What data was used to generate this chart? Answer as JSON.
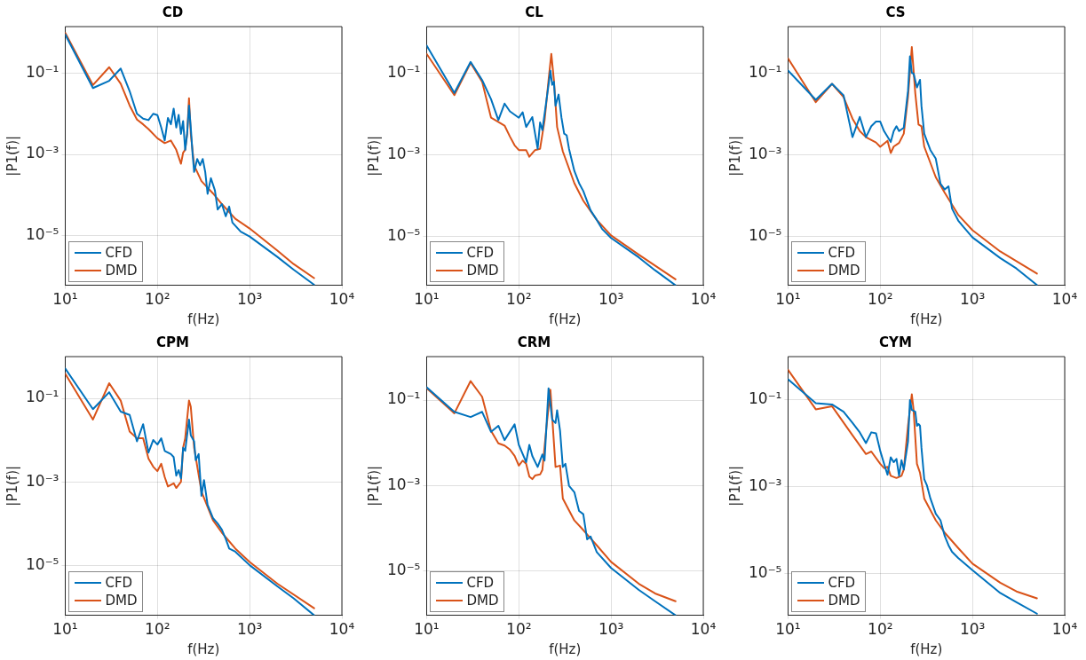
{
  "chart_data": [
    {
      "type": "line",
      "title": "CD",
      "xlabel": "f(Hz)",
      "ylabel": "|P1(f)|",
      "log": "xy",
      "grid": true,
      "legend": "bottom left",
      "line_style": "solid",
      "xlim": [
        10,
        10000
      ],
      "xticks": [
        {
          "value": 10,
          "label": "10¹"
        },
        {
          "value": 100,
          "label": "10²"
        },
        {
          "value": 1000,
          "label": "10³"
        },
        {
          "value": 10000,
          "label": "10⁴"
        }
      ],
      "ylim": [
        6e-07,
        1.4
      ],
      "yticks": [
        {
          "value": 1e-05,
          "label": "10⁻⁵"
        },
        {
          "value": 0.001,
          "label": "10⁻³"
        },
        {
          "value": 0.1,
          "label": "10⁻¹"
        }
      ],
      "series": [
        {
          "name": "CFD",
          "color": "#0072bd",
          "x": [
            10,
            20,
            30,
            40,
            50,
            60,
            70,
            80,
            90,
            100,
            110,
            120,
            130,
            140,
            150,
            160,
            170,
            180,
            190,
            200,
            210,
            220,
            230,
            240,
            250,
            270,
            290,
            310,
            330,
            350,
            380,
            420,
            450,
            500,
            550,
            600,
            650,
            800,
            1000,
            2000,
            3000,
            5000
          ],
          "values": [
            0.9,
            0.043,
            0.065,
            0.13,
            0.036,
            0.01,
            0.0076,
            0.007,
            0.01,
            0.0093,
            0.0046,
            0.0022,
            0.0079,
            0.0055,
            0.0134,
            0.0046,
            0.0094,
            0.0032,
            0.0066,
            0.0013,
            0.0032,
            0.016,
            0.0046,
            0.0011,
            0.00037,
            0.00077,
            0.00054,
            0.00077,
            0.00037,
            0.000107,
            0.00026,
            0.00013,
            4.4e-05,
            6e-05,
            3e-05,
            5.2e-05,
            2.1e-05,
            1.26e-05,
            9.5e-06,
            3e-06,
            1.45e-06,
            6.2e-07
          ]
        },
        {
          "name": "DMD",
          "color": "#d95319",
          "x": [
            10,
            20,
            30,
            40,
            50,
            60,
            70,
            80,
            100,
            120,
            140,
            160,
            180,
            190,
            200,
            210,
            220,
            230,
            250,
            300,
            400,
            500,
            700,
            1000,
            2000,
            3000,
            5000
          ],
          "values": [
            0.99,
            0.051,
            0.14,
            0.055,
            0.016,
            0.0072,
            0.0055,
            0.0042,
            0.0025,
            0.0019,
            0.0022,
            0.0013,
            0.00059,
            0.0011,
            0.0013,
            0.0032,
            0.024,
            0.0032,
            0.00054,
            0.00022,
            0.00011,
            6e-05,
            2.6e-05,
            1.5e-05,
            4.3e-06,
            2e-06,
            9e-07
          ]
        }
      ]
    },
    {
      "type": "line",
      "title": "CL",
      "xlabel": "f(Hz)",
      "ylabel": "|P1(f)|",
      "log": "xy",
      "grid": true,
      "legend": "bottom left",
      "line_style": "solid",
      "xlim": [
        10,
        10000
      ],
      "xticks": [
        {
          "value": 10,
          "label": "10¹"
        },
        {
          "value": 100,
          "label": "10²"
        },
        {
          "value": 1000,
          "label": "10³"
        },
        {
          "value": 10000,
          "label": "10⁴"
        }
      ],
      "ylim": [
        6.2e-07,
        1.4
      ],
      "yticks": [
        {
          "value": 1e-05,
          "label": "10⁻⁵"
        },
        {
          "value": 0.001,
          "label": "10⁻³"
        },
        {
          "value": 0.1,
          "label": "10⁻¹"
        }
      ],
      "series": [
        {
          "name": "CFD",
          "color": "#0072bd",
          "x": [
            10,
            20,
            30,
            40,
            50,
            60,
            70,
            80,
            100,
            110,
            120,
            140,
            150,
            160,
            170,
            180,
            200,
            220,
            230,
            240,
            250,
            270,
            290,
            310,
            330,
            350,
            400,
            450,
            500,
            550,
            600,
            700,
            800,
            1000,
            2000,
            3000,
            5000
          ],
          "values": [
            0.48,
            0.033,
            0.19,
            0.068,
            0.023,
            0.0071,
            0.018,
            0.0116,
            0.0081,
            0.011,
            0.0048,
            0.0084,
            0.0033,
            0.0014,
            0.0062,
            0.004,
            0.023,
            0.115,
            0.052,
            0.062,
            0.016,
            0.03,
            0.0081,
            0.0033,
            0.003,
            0.0014,
            0.0004,
            0.0002,
            0.000128,
            7.2e-05,
            4.3e-05,
            2.5e-05,
            1.5e-05,
            9e-06,
            3e-06,
            1.45e-06,
            6.2e-07
          ]
        },
        {
          "name": "DMD",
          "color": "#d95319",
          "x": [
            10,
            20,
            30,
            40,
            50,
            70,
            80,
            90,
            100,
            120,
            130,
            150,
            170,
            190,
            210,
            225,
            240,
            260,
            300,
            400,
            500,
            700,
            1000,
            2000,
            5000
          ],
          "values": [
            0.3,
            0.029,
            0.18,
            0.062,
            0.0081,
            0.0052,
            0.0028,
            0.0017,
            0.0013,
            0.0013,
            0.00089,
            0.0013,
            0.0014,
            0.0068,
            0.068,
            0.3,
            0.068,
            0.0048,
            0.0012,
            0.0002,
            7.4e-05,
            2.5e-05,
            1.04e-05,
            3.5e-06,
            8.7e-07
          ]
        }
      ]
    },
    {
      "type": "line",
      "title": "CS",
      "xlabel": "f(Hz)",
      "ylabel": "|P1(f)|",
      "log": "xy",
      "grid": true,
      "legend": "bottom left",
      "line_style": "solid",
      "xlim": [
        10,
        10000
      ],
      "xticks": [
        {
          "value": 10,
          "label": "10¹"
        },
        {
          "value": 100,
          "label": "10²"
        },
        {
          "value": 1000,
          "label": "10³"
        },
        {
          "value": 10000,
          "label": "10⁴"
        }
      ],
      "ylim": [
        6.2e-07,
        1.4
      ],
      "yticks": [
        {
          "value": 1e-05,
          "label": "10⁻⁵"
        },
        {
          "value": 0.001,
          "label": "10⁻³"
        },
        {
          "value": 0.1,
          "label": "10⁻¹"
        }
      ],
      "series": [
        {
          "name": "CFD",
          "color": "#0072bd",
          "x": [
            10,
            20,
            30,
            40,
            50,
            60,
            70,
            80,
            90,
            100,
            110,
            130,
            140,
            150,
            160,
            180,
            200,
            210,
            220,
            230,
            250,
            270,
            280,
            300,
            320,
            350,
            400,
            450,
            500,
            550,
            600,
            700,
            800,
            1000,
            2000,
            3000,
            5000
          ],
          "values": [
            0.117,
            0.0223,
            0.055,
            0.0288,
            0.0027,
            0.0085,
            0.0027,
            0.005,
            0.0065,
            0.0065,
            0.0038,
            0.00205,
            0.0038,
            0.005,
            0.0038,
            0.0046,
            0.037,
            0.26,
            0.102,
            0.098,
            0.045,
            0.069,
            0.0158,
            0.0033,
            0.0022,
            0.0013,
            0.0008,
            0.000195,
            0.00014,
            0.000167,
            4.74e-05,
            2.42e-05,
            1.67e-05,
            9.3e-06,
            2.9e-06,
            1.6e-06,
            6.3e-07
          ]
        },
        {
          "name": "DMD",
          "color": "#d95319",
          "x": [
            10,
            20,
            30,
            40,
            50,
            60,
            70,
            90,
            100,
            120,
            130,
            140,
            160,
            180,
            200,
            220,
            240,
            260,
            280,
            300,
            400,
            500,
            700,
            1000,
            2000,
            5000
          ],
          "values": [
            0.233,
            0.0195,
            0.055,
            0.026,
            0.0077,
            0.0038,
            0.0027,
            0.002,
            0.00156,
            0.0022,
            0.0011,
            0.00158,
            0.00195,
            0.0033,
            0.026,
            0.44,
            0.032,
            0.0055,
            0.005,
            0.00158,
            0.00028,
            0.000116,
            3.35e-05,
            1.4e-05,
            4.2e-06,
            1.2e-06
          ]
        }
      ]
    },
    {
      "type": "line",
      "title": "CPM",
      "xlabel": "f(Hz)",
      "ylabel": "|P1(f)|",
      "log": "xy",
      "grid": true,
      "legend": "bottom left",
      "line_style": "solid",
      "xlim": [
        10,
        10000
      ],
      "xticks": [
        {
          "value": 10,
          "label": "10¹"
        },
        {
          "value": 100,
          "label": "10²"
        },
        {
          "value": 1000,
          "label": "10³"
        },
        {
          "value": 10000,
          "label": "10⁴"
        }
      ],
      "ylim": [
        6.3e-07,
        1
      ],
      "yticks": [
        {
          "value": 1e-05,
          "label": "10⁻⁵"
        },
        {
          "value": 0.001,
          "label": "10⁻³"
        },
        {
          "value": 0.1,
          "label": "10⁻¹"
        }
      ],
      "series": [
        {
          "name": "CFD",
          "color": "#0072bd",
          "x": [
            10,
            20,
            30,
            40,
            50,
            60,
            70,
            80,
            90,
            100,
            110,
            120,
            140,
            150,
            160,
            170,
            180,
            190,
            200,
            220,
            230,
            250,
            260,
            280,
            300,
            320,
            350,
            400,
            450,
            500,
            550,
            600,
            700,
            1000,
            2000,
            3000,
            5000
          ],
          "values": [
            0.52,
            0.055,
            0.14,
            0.048,
            0.04,
            0.0093,
            0.024,
            0.005,
            0.01,
            0.0078,
            0.011,
            0.0055,
            0.0046,
            0.0039,
            0.0014,
            0.0019,
            0.0012,
            0.0065,
            0.0055,
            0.031,
            0.013,
            0.0093,
            0.0033,
            0.0046,
            0.00046,
            0.0011,
            0.00028,
            0.000135,
            0.0001,
            7.1e-05,
            4.3e-05,
            2.5e-05,
            2.1e-05,
            1e-05,
            3.1e-06,
            1.6e-06,
            6.3e-07
          ]
        },
        {
          "name": "DMD",
          "color": "#d95319",
          "x": [
            10,
            20,
            30,
            40,
            50,
            60,
            70,
            80,
            90,
            100,
            110,
            120,
            130,
            150,
            160,
            180,
            190,
            200,
            220,
            230,
            250,
            300,
            400,
            500,
            700,
            1000,
            2000,
            5000
          ],
          "values": [
            0.39,
            0.031,
            0.23,
            0.088,
            0.016,
            0.011,
            0.011,
            0.0036,
            0.0023,
            0.0018,
            0.0027,
            0.0013,
            0.00077,
            0.00092,
            0.00071,
            0.001,
            0.0066,
            0.011,
            0.089,
            0.063,
            0.0066,
            0.00058,
            0.00012,
            6e-05,
            2.5e-05,
            1.2e-05,
            3.6e-06,
            9.3e-07
          ]
        }
      ]
    },
    {
      "type": "line",
      "title": "CRM",
      "xlabel": "f(Hz)",
      "ylabel": "|P1(f)|",
      "log": "xy",
      "grid": true,
      "legend": "bottom left",
      "line_style": "solid",
      "xlim": [
        10,
        10000
      ],
      "xticks": [
        {
          "value": 10,
          "label": "10¹"
        },
        {
          "value": 100,
          "label": "10²"
        },
        {
          "value": 1000,
          "label": "10³"
        },
        {
          "value": 10000,
          "label": "10⁴"
        }
      ],
      "ylim": [
        8.9e-07,
        1.05
      ],
      "yticks": [
        {
          "value": 1e-05,
          "label": "10⁻⁵"
        },
        {
          "value": 0.001,
          "label": "10⁻³"
        },
        {
          "value": 0.1,
          "label": "10⁻¹"
        }
      ],
      "series": [
        {
          "name": "CFD",
          "color": "#0072bd",
          "x": [
            10,
            20,
            30,
            40,
            50,
            60,
            70,
            90,
            100,
            120,
            130,
            140,
            160,
            180,
            190,
            210,
            230,
            250,
            260,
            280,
            300,
            320,
            350,
            400,
            450,
            500,
            550,
            600,
            700,
            1000,
            2000,
            3000,
            5000
          ],
          "values": [
            0.2,
            0.053,
            0.04,
            0.053,
            0.018,
            0.025,
            0.0115,
            0.027,
            0.0089,
            0.0035,
            0.0089,
            0.0049,
            0.0027,
            0.0053,
            0.0038,
            0.19,
            0.035,
            0.029,
            0.058,
            0.019,
            0.0027,
            0.0032,
            0.00098,
            0.00069,
            0.00025,
            0.00021,
            5.4e-05,
            6.3e-05,
            2.7e-05,
            1.15e-05,
            3.5e-06,
            1.9e-06,
            8.9e-07
          ]
        },
        {
          "name": "DMD",
          "color": "#d95319",
          "x": [
            10,
            20,
            30,
            40,
            50,
            60,
            70,
            80,
            90,
            100,
            110,
            120,
            130,
            140,
            150,
            170,
            180,
            200,
            220,
            230,
            250,
            280,
            300,
            400,
            500,
            700,
            1000,
            2000,
            3000,
            5000
          ],
          "values": [
            0.19,
            0.049,
            0.28,
            0.12,
            0.019,
            0.0097,
            0.0086,
            0.0069,
            0.0049,
            0.0029,
            0.0038,
            0.0032,
            0.0016,
            0.0014,
            0.0017,
            0.0018,
            0.0023,
            0.025,
            0.175,
            0.041,
            0.0027,
            0.0029,
            0.00049,
            0.00015,
            8.9e-05,
            3.9e-05,
            1.6e-05,
            4.9e-06,
            2.9e-06,
            1.9e-06
          ]
        }
      ]
    },
    {
      "type": "line",
      "title": "CYM",
      "xlabel": "f(Hz)",
      "ylabel": "|P1(f)|",
      "log": "xy",
      "grid": true,
      "legend": "bottom left",
      "line_style": "solid",
      "xlim": [
        10,
        10000
      ],
      "xticks": [
        {
          "value": 10,
          "label": "10¹"
        },
        {
          "value": 100,
          "label": "10²"
        },
        {
          "value": 1000,
          "label": "10³"
        },
        {
          "value": 10000,
          "label": "10⁴"
        }
      ],
      "ylim": [
        1.1e-06,
        1
      ],
      "yticks": [
        {
          "value": 1e-05,
          "label": "10⁻⁵"
        },
        {
          "value": 0.001,
          "label": "10⁻³"
        },
        {
          "value": 0.1,
          "label": "10⁻¹"
        }
      ],
      "series": [
        {
          "name": "CFD",
          "color": "#0072bd",
          "x": [
            10,
            20,
            30,
            40,
            50,
            60,
            70,
            80,
            90,
            100,
            110,
            120,
            130,
            140,
            150,
            160,
            170,
            180,
            200,
            210,
            220,
            240,
            250,
            260,
            270,
            280,
            300,
            320,
            350,
            400,
            450,
            500,
            550,
            600,
            700,
            1000,
            2000,
            3000,
            5000
          ],
          "values": [
            0.3,
            0.085,
            0.079,
            0.054,
            0.03,
            0.018,
            0.0102,
            0.018,
            0.017,
            0.0067,
            0.0034,
            0.0019,
            0.0048,
            0.0037,
            0.0044,
            0.0018,
            0.0041,
            0.0025,
            0.011,
            0.1,
            0.059,
            0.054,
            0.0255,
            0.028,
            0.0255,
            0.0079,
            0.0015,
            0.0011,
            0.00054,
            0.00024,
            0.00017,
            7.4e-05,
            4.5e-05,
            3.2e-05,
            2.3e-05,
            1.2e-05,
            3.6e-06,
            2.2e-06,
            1.2e-06
          ]
        },
        {
          "name": "DMD",
          "color": "#d95319",
          "x": [
            10,
            20,
            30,
            50,
            70,
            80,
            100,
            110,
            120,
            130,
            150,
            170,
            180,
            200,
            220,
            230,
            250,
            270,
            300,
            400,
            500,
            700,
            1000,
            2000,
            3000,
            5000
          ],
          "values": [
            0.5,
            0.061,
            0.072,
            0.0155,
            0.0057,
            0.0065,
            0.0034,
            0.0027,
            0.0029,
            0.0018,
            0.0016,
            0.0018,
            0.0025,
            0.0255,
            0.135,
            0.059,
            0.0034,
            0.0021,
            0.00054,
            0.00017,
            8.8e-05,
            3.9e-05,
            1.7e-05,
            6.2e-06,
            3.9e-06,
            2.7e-06
          ]
        }
      ]
    }
  ]
}
